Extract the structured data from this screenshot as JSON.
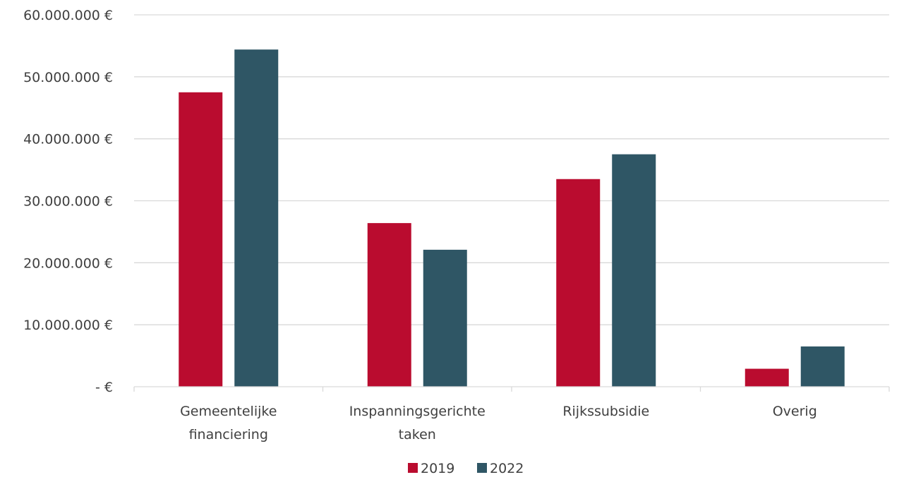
{
  "chart_data": {
    "type": "bar",
    "title": "",
    "xlabel": "",
    "ylabel": "",
    "categories": [
      [
        "Gemeentelijke",
        "financiering"
      ],
      [
        "Inspanningsgerichte",
        "taken"
      ],
      [
        "Rijkssubsidie"
      ],
      [
        "Overig"
      ]
    ],
    "series": [
      {
        "name": "2019",
        "color": "#ba0c2f",
        "values": [
          47500000,
          26400000,
          33500000,
          2900000
        ]
      },
      {
        "name": "2022",
        "color": "#2f5665",
        "values": [
          54400000,
          22100000,
          37500000,
          6500000
        ]
      }
    ],
    "ylim": [
      0,
      60000000
    ],
    "yticks": [
      {
        "value": 0,
        "label": "-   €"
      },
      {
        "value": 10000000,
        "label": "10.000.000 €"
      },
      {
        "value": 20000000,
        "label": "20.000.000 €"
      },
      {
        "value": 30000000,
        "label": "30.000.000 €"
      },
      {
        "value": 40000000,
        "label": "40.000.000 €"
      },
      {
        "value": 50000000,
        "label": "50.000.000 €"
      },
      {
        "value": 60000000,
        "label": "60.000.000 €"
      }
    ],
    "grid": true,
    "legend_position": "bottom"
  }
}
